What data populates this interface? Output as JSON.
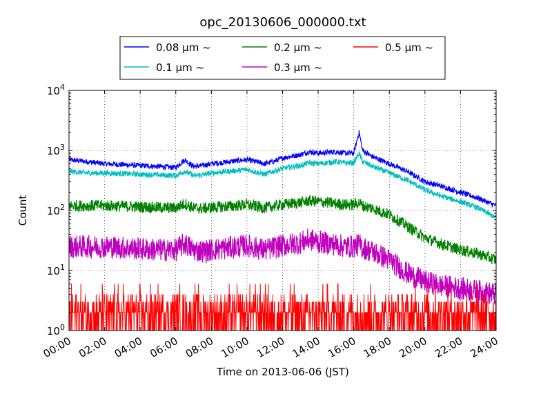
{
  "chart_data": {
    "type": "line",
    "title": "opc_20130606_000000.txt",
    "xlabel": "Time on 2013-06-06 (JST)",
    "ylabel": "Count",
    "xlim": [
      0,
      24
    ],
    "ylim": [
      1,
      10000
    ],
    "yscale": "log",
    "grid": true,
    "legend_placement": "top (above plot)",
    "x_tick_labels": [
      "00:00",
      "02:00",
      "04:00",
      "06:00",
      "08:00",
      "10:00",
      "12:00",
      "14:00",
      "16:00",
      "18:00",
      "20:00",
      "22:00",
      "24:00"
    ],
    "y_tick_labels": [
      {
        "base": "10",
        "exp": "0"
      },
      {
        "base": "10",
        "exp": "1"
      },
      {
        "base": "10",
        "exp": "2"
      },
      {
        "base": "10",
        "exp": "3"
      },
      {
        "base": "10",
        "exp": "4"
      }
    ],
    "x": [
      0,
      1,
      2,
      3,
      4,
      5,
      6,
      6.5,
      7,
      7.5,
      8,
      9,
      10,
      11,
      11.5,
      12,
      13,
      13.5,
      14,
      15,
      15.5,
      16,
      16.3,
      16.5,
      17,
      18,
      19,
      20,
      21,
      22,
      23,
      24
    ],
    "series": [
      {
        "name": "0.08 μm ~",
        "color": "#0000ff",
        "values": [
          700,
          650,
          600,
          580,
          560,
          540,
          520,
          700,
          540,
          560,
          600,
          650,
          700,
          600,
          650,
          750,
          850,
          950,
          900,
          950,
          900,
          900,
          2000,
          1000,
          800,
          600,
          450,
          300,
          250,
          200,
          160,
          120
        ]
      },
      {
        "name": "0.1 μm ~",
        "color": "#00bfbf",
        "values": [
          450,
          420,
          420,
          410,
          400,
          390,
          380,
          450,
          380,
          390,
          420,
          450,
          480,
          400,
          450,
          500,
          560,
          620,
          600,
          650,
          620,
          620,
          900,
          650,
          550,
          420,
          320,
          220,
          170,
          140,
          110,
          75
        ]
      },
      {
        "name": "0.2 μm ~",
        "color": "#008000",
        "values": [
          120,
          120,
          120,
          118,
          115,
          112,
          110,
          130,
          110,
          108,
          112,
          118,
          125,
          110,
          118,
          125,
          135,
          145,
          140,
          130,
          125,
          125,
          135,
          120,
          110,
          85,
          55,
          35,
          27,
          22,
          19,
          15
        ]
      },
      {
        "name": "0.3 μm ~",
        "color": "#bf00bf",
        "values": [
          25,
          25,
          25,
          24,
          23,
          22,
          22,
          28,
          22,
          21,
          22,
          24,
          26,
          22,
          24,
          26,
          29,
          33,
          30,
          27,
          25,
          25,
          27,
          24,
          21,
          15,
          9,
          6.5,
          5.5,
          5,
          4.5,
          4
        ]
      },
      {
        "name": "0.5 μm ~",
        "color": "#ff0000",
        "values": [
          2,
          2,
          2,
          2,
          2,
          2,
          2,
          2,
          2,
          2,
          2,
          2,
          2,
          2,
          2,
          2,
          2,
          2,
          2,
          2,
          2,
          2,
          2,
          2,
          2,
          2,
          2,
          2,
          2,
          2,
          2,
          2
        ]
      }
    ]
  }
}
